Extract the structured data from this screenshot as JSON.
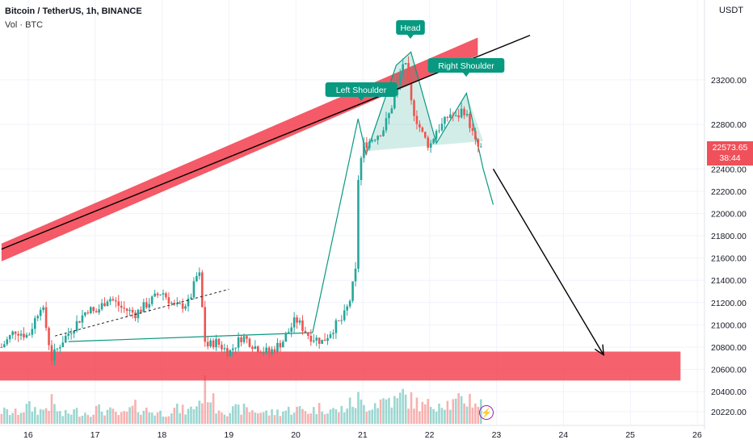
{
  "header": {
    "symbol_line": "Bitcoin / TetherUS, 1h, BINANCE",
    "volume_line": "Vol · BTC"
  },
  "axis": {
    "currency": "USDT"
  },
  "price_label": {
    "price": "22573.65",
    "countdown": "38:44"
  },
  "colors": {
    "up": "#26a69a",
    "down": "#ef5350",
    "zone": "#f23645",
    "pattern": "#089981"
  },
  "chart_data": {
    "type": "candlestick",
    "title": "Bitcoin / TetherUS, 1h, BINANCE",
    "ylim": [
      20150,
      23580
    ],
    "y_ticks": [
      20220,
      20400,
      20600,
      20800,
      21000,
      21200,
      21400,
      21600,
      21800,
      22000,
      22200,
      22400,
      22800,
      23200
    ],
    "x_ticks": [
      "16",
      "17",
      "18",
      "19",
      "20",
      "21",
      "22",
      "23",
      "24",
      "25",
      "26"
    ],
    "x_range": [
      "15.6",
      "26.8"
    ],
    "price_path_days": [
      15.6,
      15.8,
      16.0,
      16.2,
      16.35,
      16.5,
      16.7,
      16.9,
      17.0,
      17.2,
      17.4,
      17.6,
      17.8,
      18.0,
      18.2,
      18.4,
      18.55,
      18.65,
      18.8,
      19.0,
      19.2,
      19.4,
      19.6,
      19.8,
      20.0,
      20.2,
      20.4,
      20.6,
      20.7,
      20.8,
      20.9,
      20.93,
      21.0,
      21.1,
      21.2,
      21.3,
      21.4,
      21.5,
      21.6,
      21.65,
      21.72,
      21.8,
      21.9,
      22.0,
      22.1,
      22.2,
      22.3,
      22.4,
      22.5,
      22.6,
      22.7,
      22.8
    ],
    "price_path_values": [
      20800,
      20950,
      20900,
      21200,
      20700,
      20850,
      21000,
      21150,
      21100,
      21250,
      21150,
      21100,
      21200,
      21300,
      21150,
      21200,
      21500,
      20800,
      20850,
      20750,
      20900,
      20800,
      20750,
      20850,
      21050,
      20900,
      20850,
      21000,
      21050,
      21200,
      21500,
      22300,
      22600,
      22650,
      22700,
      22750,
      22900,
      23100,
      23350,
      23300,
      23000,
      22850,
      22700,
      22600,
      22750,
      22800,
      22900,
      22850,
      22950,
      22800,
      22600,
      22573.65
    ],
    "volume_path_values": [
      0.3,
      0.25,
      0.4,
      0.3,
      0.5,
      0.2,
      0.3,
      0.25,
      0.35,
      0.3,
      0.2,
      0.4,
      0.3,
      0.25,
      0.35,
      0.3,
      0.5,
      0.9,
      0.4,
      0.3,
      0.35,
      0.3,
      0.25,
      0.3,
      0.35,
      0.3,
      0.4,
      0.3,
      0.35,
      0.45,
      0.5,
      0.6,
      0.4,
      0.45,
      0.5,
      0.55,
      0.6,
      0.5,
      0.7,
      0.6,
      0.55,
      0.5,
      0.4,
      0.45,
      0.5,
      0.55,
      0.45,
      0.5,
      0.55,
      0.6,
      0.5,
      0.45
    ],
    "drawings": {
      "resistance_band": {
        "from": [
          "15.6",
          21650
        ],
        "to": [
          "22.72",
          23500
        ]
      },
      "trend_line": {
        "from": [
          "15.6",
          21680
        ],
        "to": [
          "23.5",
          23600
        ]
      },
      "support_zone": {
        "from_x": "15.6",
        "to_x": "25.75",
        "low": 20500,
        "high": 20760
      },
      "dashed_trend": {
        "from": [
          "16.4",
          20900
        ],
        "to": [
          "19.0",
          21320
        ]
      },
      "projection_arrow": {
        "from": [
          "22.95",
          22400
        ],
        "to": [
          "24.6",
          20730
        ]
      },
      "pattern_path": {
        "x": [
          "16.6",
          "20.25",
          "20.93",
          "21.05",
          "21.5",
          "21.72",
          "22.1",
          "22.55",
          "22.8",
          "22.95"
        ],
        "y": [
          20850,
          20930,
          22850,
          22530,
          23330,
          23450,
          22630,
          23080,
          22400,
          22080
        ]
      },
      "pattern_fill": {
        "x": [
          "21.05",
          "21.5",
          "21.72",
          "22.1",
          "22.55",
          "22.8"
        ],
        "y": [
          22560,
          23330,
          23450,
          22630,
          23080,
          22650
        ]
      }
    },
    "annotations": [
      "Left Shoulder",
      "Head",
      "Right Shoulder"
    ]
  }
}
